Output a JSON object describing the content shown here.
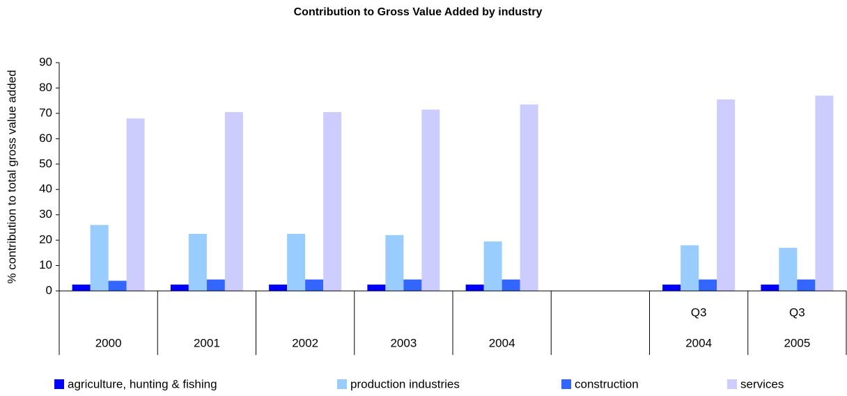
{
  "chart_data": {
    "type": "bar",
    "title": "Contribution to Gross Value Added by industry",
    "y_label": "% contribution to total gross value added",
    "categories": [
      "2000",
      "2001",
      "2002",
      "2003",
      "2004",
      null,
      "2004",
      "2005"
    ],
    "category_prefixes": [
      null,
      null,
      null,
      null,
      null,
      null,
      "Q3",
      "Q3"
    ],
    "series": [
      {
        "name": "agriculture, hunting & fishing",
        "color": "#0000ff",
        "values": [
          2.5,
          2.5,
          2.5,
          2.5,
          2.5,
          null,
          2.5,
          2.5
        ]
      },
      {
        "name": "production industries",
        "color": "#99ccff",
        "values": [
          26,
          22.5,
          22.5,
          22,
          19.5,
          null,
          18,
          17
        ]
      },
      {
        "name": "construction",
        "color": "#3366ff",
        "values": [
          4,
          4.5,
          4.5,
          4.5,
          4.5,
          null,
          4.5,
          4.5
        ]
      },
      {
        "name": "services",
        "color": "#ccccff",
        "values": [
          68,
          70.5,
          70.5,
          71.5,
          73.5,
          null,
          75.5,
          77
        ]
      }
    ],
    "ylim": [
      0,
      90
    ],
    "yticks": [
      0,
      10,
      20,
      30,
      40,
      50,
      60,
      70,
      80,
      90
    ],
    "grid": false,
    "legend": "bottom"
  }
}
